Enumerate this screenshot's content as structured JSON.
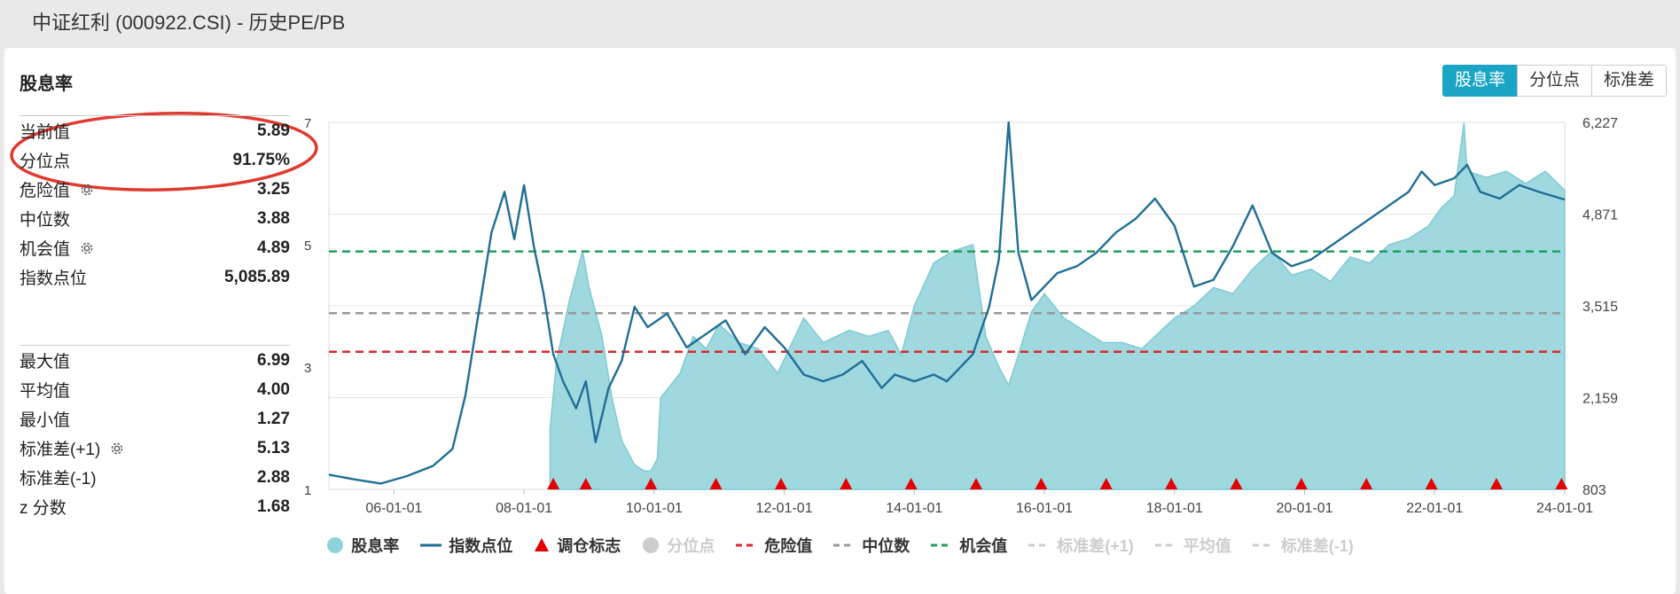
{
  "page": {
    "title": "中证红利 (000922.CSI) - 历史PE/PB"
  },
  "section": {
    "title": "股息率"
  },
  "tabs": [
    {
      "label": "股息率",
      "active": true
    },
    {
      "label": "分位点",
      "active": false
    },
    {
      "label": "标准差",
      "active": false
    }
  ],
  "stats_top": [
    {
      "label": "当前值",
      "value": "5.89",
      "gear": false
    },
    {
      "label": "分位点",
      "value": "91.75%",
      "gear": false
    },
    {
      "label": "危险值",
      "value": "3.25",
      "gear": true
    },
    {
      "label": "中位数",
      "value": "3.88",
      "gear": false
    },
    {
      "label": "机会值",
      "value": "4.89",
      "gear": true
    },
    {
      "label": "指数点位",
      "value": "5,085.89",
      "gear": false
    }
  ],
  "stats_bottom": [
    {
      "label": "最大值",
      "value": "6.99",
      "gear": false
    },
    {
      "label": "平均值",
      "value": "4.00",
      "gear": false
    },
    {
      "label": "最小值",
      "value": "1.27",
      "gear": false
    },
    {
      "label": "标准差(+1)",
      "value": "5.13",
      "gear": true
    },
    {
      "label": "标准差(-1)",
      "value": "2.88",
      "gear": false
    },
    {
      "label": "z 分数",
      "value": "1.68",
      "gear": false
    }
  ],
  "colors": {
    "accent": "#1ba5c5",
    "area_fill": "#9fd8df",
    "area_stroke": "#7fcad3",
    "index_line": "#1f6e94",
    "danger": "#d42b2b",
    "median": "#999999",
    "opportunity": "#1f9e5a",
    "marker": "#e60000",
    "annotation": "#e03a2e"
  },
  "legend": [
    {
      "label": "股息率",
      "type": "dot",
      "color": "#8ed2dc",
      "off": false
    },
    {
      "label": "指数点位",
      "type": "line",
      "color": "#1f6e94",
      "off": false
    },
    {
      "label": "调仓标志",
      "type": "triangle",
      "color": "#e60000",
      "off": false
    },
    {
      "label": "分位点",
      "type": "dot",
      "color": "#cccccc",
      "off": true
    },
    {
      "label": "危险值",
      "type": "dash",
      "color": "#d42b2b",
      "off": false
    },
    {
      "label": "中位数",
      "type": "dash",
      "color": "#999999",
      "off": false
    },
    {
      "label": "机会值",
      "type": "dash",
      "color": "#1f9e5a",
      "off": false
    },
    {
      "label": "标准差(+1)",
      "type": "dash",
      "color": "#cccccc",
      "off": true
    },
    {
      "label": "平均值",
      "type": "dash",
      "color": "#cccccc",
      "off": true
    },
    {
      "label": "标准差(-1)",
      "type": "dash",
      "color": "#cccccc",
      "off": true
    }
  ],
  "chart_data": {
    "type": "area",
    "x_ticks": [
      "06-01-01",
      "08-01-01",
      "10-01-01",
      "12-01-01",
      "14-01-01",
      "16-01-01",
      "18-01-01",
      "20-01-01",
      "22-01-01",
      "24-01-01"
    ],
    "y_left_ticks": [
      "7",
      "5",
      "3",
      "1"
    ],
    "y_left_range": [
      1,
      7
    ],
    "y_right_ticks": [
      "6,227",
      "4,871",
      "3,515",
      "2,159",
      "803"
    ],
    "y_right_range": [
      803,
      6227
    ],
    "x_range": [
      2005.0,
      2024.0
    ],
    "reference_lines": {
      "danger": 3.25,
      "median": 3.88,
      "opportunity": 4.89
    },
    "dividend_yield": {
      "name": "股息率",
      "x": [
        2008.4,
        2008.5,
        2008.7,
        2008.9,
        2009.0,
        2009.2,
        2009.35,
        2009.5,
        2009.7,
        2009.85,
        2009.95,
        2010.05,
        2010.1,
        2010.4,
        2010.6,
        2010.8,
        2011.0,
        2011.3,
        2011.6,
        2011.9,
        2012.3,
        2012.6,
        2013.0,
        2013.3,
        2013.6,
        2013.8,
        2014.0,
        2014.3,
        2014.6,
        2014.9,
        2015.1,
        2015.3,
        2015.45,
        2015.6,
        2015.8,
        2016.0,
        2016.3,
        2016.6,
        2016.9,
        2017.2,
        2017.5,
        2017.8,
        2018.0,
        2018.3,
        2018.6,
        2018.9,
        2019.2,
        2019.5,
        2019.8,
        2020.1,
        2020.4,
        2020.7,
        2021.0,
        2021.3,
        2021.6,
        2021.9,
        2022.1,
        2022.3,
        2022.45,
        2022.5,
        2022.8,
        2023.1,
        2023.4,
        2023.7,
        2024.0
      ],
      "values": [
        2.0,
        3.1,
        4.1,
        4.9,
        4.3,
        3.5,
        2.5,
        1.8,
        1.4,
        1.3,
        1.3,
        1.5,
        2.5,
        2.9,
        3.5,
        3.3,
        3.7,
        3.4,
        3.3,
        2.9,
        3.8,
        3.4,
        3.6,
        3.5,
        3.6,
        3.2,
        4.0,
        4.7,
        4.9,
        5.0,
        3.5,
        3.0,
        2.7,
        3.2,
        3.9,
        4.2,
        3.8,
        3.6,
        3.4,
        3.4,
        3.3,
        3.6,
        3.8,
        4.0,
        4.3,
        4.2,
        4.6,
        4.9,
        4.5,
        4.6,
        4.4,
        4.8,
        4.7,
        5.0,
        5.1,
        5.3,
        5.6,
        5.8,
        6.99,
        6.2,
        6.1,
        6.2,
        6.0,
        6.2,
        5.89
      ]
    },
    "index_points": {
      "name": "指数点位",
      "x": [
        2005.0,
        2005.4,
        2005.8,
        2006.2,
        2006.6,
        2006.9,
        2007.1,
        2007.3,
        2007.5,
        2007.7,
        2007.85,
        2008.0,
        2008.15,
        2008.3,
        2008.45,
        2008.6,
        2008.8,
        2008.95,
        2009.1,
        2009.3,
        2009.5,
        2009.7,
        2009.9,
        2010.2,
        2010.5,
        2010.8,
        2011.1,
        2011.4,
        2011.7,
        2012.0,
        2012.3,
        2012.6,
        2012.9,
        2013.2,
        2013.5,
        2013.7,
        2014.0,
        2014.3,
        2014.5,
        2014.7,
        2014.9,
        2015.15,
        2015.3,
        2015.45,
        2015.6,
        2015.8,
        2016.0,
        2016.2,
        2016.5,
        2016.8,
        2017.1,
        2017.4,
        2017.7,
        2018.0,
        2018.3,
        2018.6,
        2018.9,
        2019.2,
        2019.5,
        2019.8,
        2020.1,
        2020.4,
        2020.7,
        2021.0,
        2021.3,
        2021.6,
        2021.8,
        2022.0,
        2022.3,
        2022.5,
        2022.7,
        2023.0,
        2023.3,
        2023.6,
        2024.0
      ],
      "values": [
        1020,
        950,
        890,
        1000,
        1150,
        1400,
        2200,
        3400,
        4600,
        5200,
        4500,
        5300,
        4400,
        3700,
        2800,
        2400,
        2000,
        2400,
        1500,
        2300,
        2700,
        3500,
        3200,
        3400,
        2900,
        3100,
        3300,
        2800,
        3200,
        2900,
        2500,
        2400,
        2500,
        2700,
        2300,
        2500,
        2400,
        2500,
        2400,
        2600,
        2800,
        3500,
        4200,
        6227,
        4300,
        3600,
        3800,
        4000,
        4100,
        4300,
        4600,
        4800,
        5100,
        4700,
        3800,
        3900,
        4400,
        5000,
        4300,
        4100,
        4200,
        4400,
        4600,
        4800,
        5000,
        5200,
        5500,
        5300,
        5400,
        5600,
        5200,
        5100,
        5300,
        5200,
        5085.89
      ]
    },
    "rebalance_markers": [
      2008.45,
      2008.95,
      2009.95,
      2010.95,
      2011.95,
      2012.95,
      2013.95,
      2014.95,
      2015.95,
      2016.95,
      2017.95,
      2018.95,
      2019.95,
      2020.95,
      2021.95,
      2022.95,
      2023.95
    ]
  }
}
